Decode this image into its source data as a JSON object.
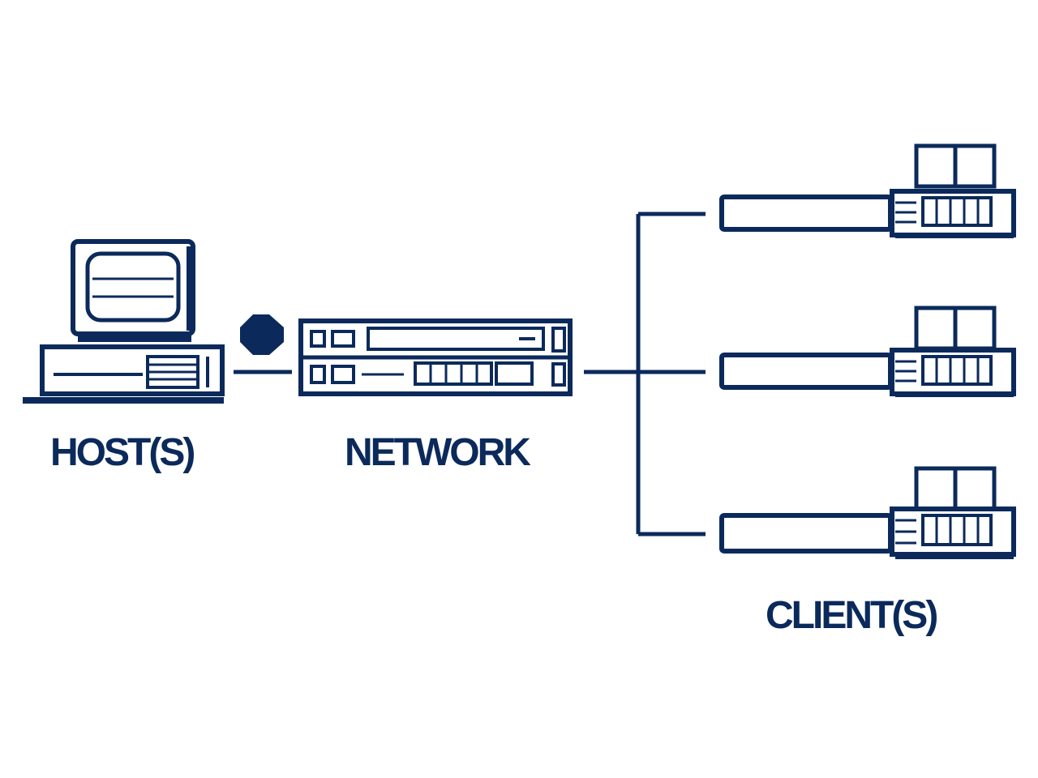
{
  "labels": {
    "host": "HOST(S)",
    "network": "NETWORK",
    "client": "CLIENT(S)"
  },
  "colors": {
    "ink": "#0b2a5b",
    "background": "#ffffff"
  },
  "icons": {
    "host": "desktop-computer-icon",
    "network": "network-switch-icon",
    "client": "client-device-icon"
  }
}
